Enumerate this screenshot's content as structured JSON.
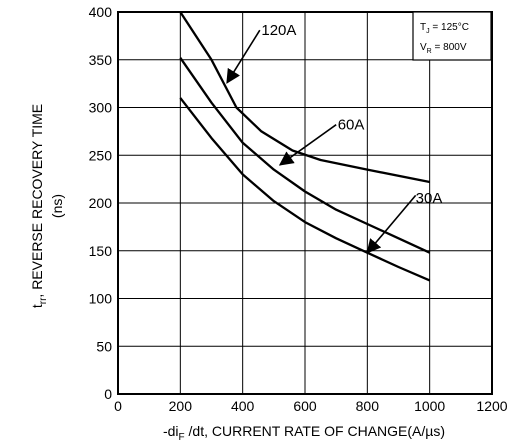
{
  "chart_data": {
    "type": "line",
    "title": "",
    "xlabel": {
      "pre": "-di",
      "sub": "F",
      "post": " /dt, CURRENT RATE OF CHANGE(A/µs)"
    },
    "ylabel": {
      "pre": "t",
      "sub": "rr",
      "post": ", REVERSE RECOVERY TIME",
      "line2": "(ns)"
    },
    "xlim": [
      0,
      1200
    ],
    "ylim": [
      0,
      400
    ],
    "xticks": [
      "0",
      "200",
      "400",
      "600",
      "800",
      "1000",
      "1200"
    ],
    "yticks": [
      "0",
      "50",
      "100",
      "150",
      "200",
      "250",
      "300",
      "350",
      "400"
    ],
    "grid": true,
    "conditions": {
      "tj": {
        "pre": "T",
        "sub": "J",
        "post": " = 125°C"
      },
      "vr": {
        "pre": "V",
        "sub": "R",
        "post": " = 800V"
      }
    },
    "series": [
      {
        "name": "120A",
        "x": [
          200,
          300,
          380,
          460,
          560,
          650,
          800,
          1000
        ],
        "y": [
          400,
          350,
          300,
          275,
          255,
          245,
          235,
          222
        ]
      },
      {
        "name": "60A",
        "x": [
          200,
          300,
          400,
          500,
          600,
          700,
          800,
          900,
          1000
        ],
        "y": [
          352,
          305,
          263,
          235,
          212,
          193,
          178,
          163,
          148
        ]
      },
      {
        "name": "30A",
        "x": [
          200,
          300,
          400,
          500,
          600,
          700,
          800,
          900,
          1000
        ],
        "y": [
          310,
          268,
          230,
          202,
          180,
          163,
          148,
          133,
          119
        ]
      }
    ]
  }
}
